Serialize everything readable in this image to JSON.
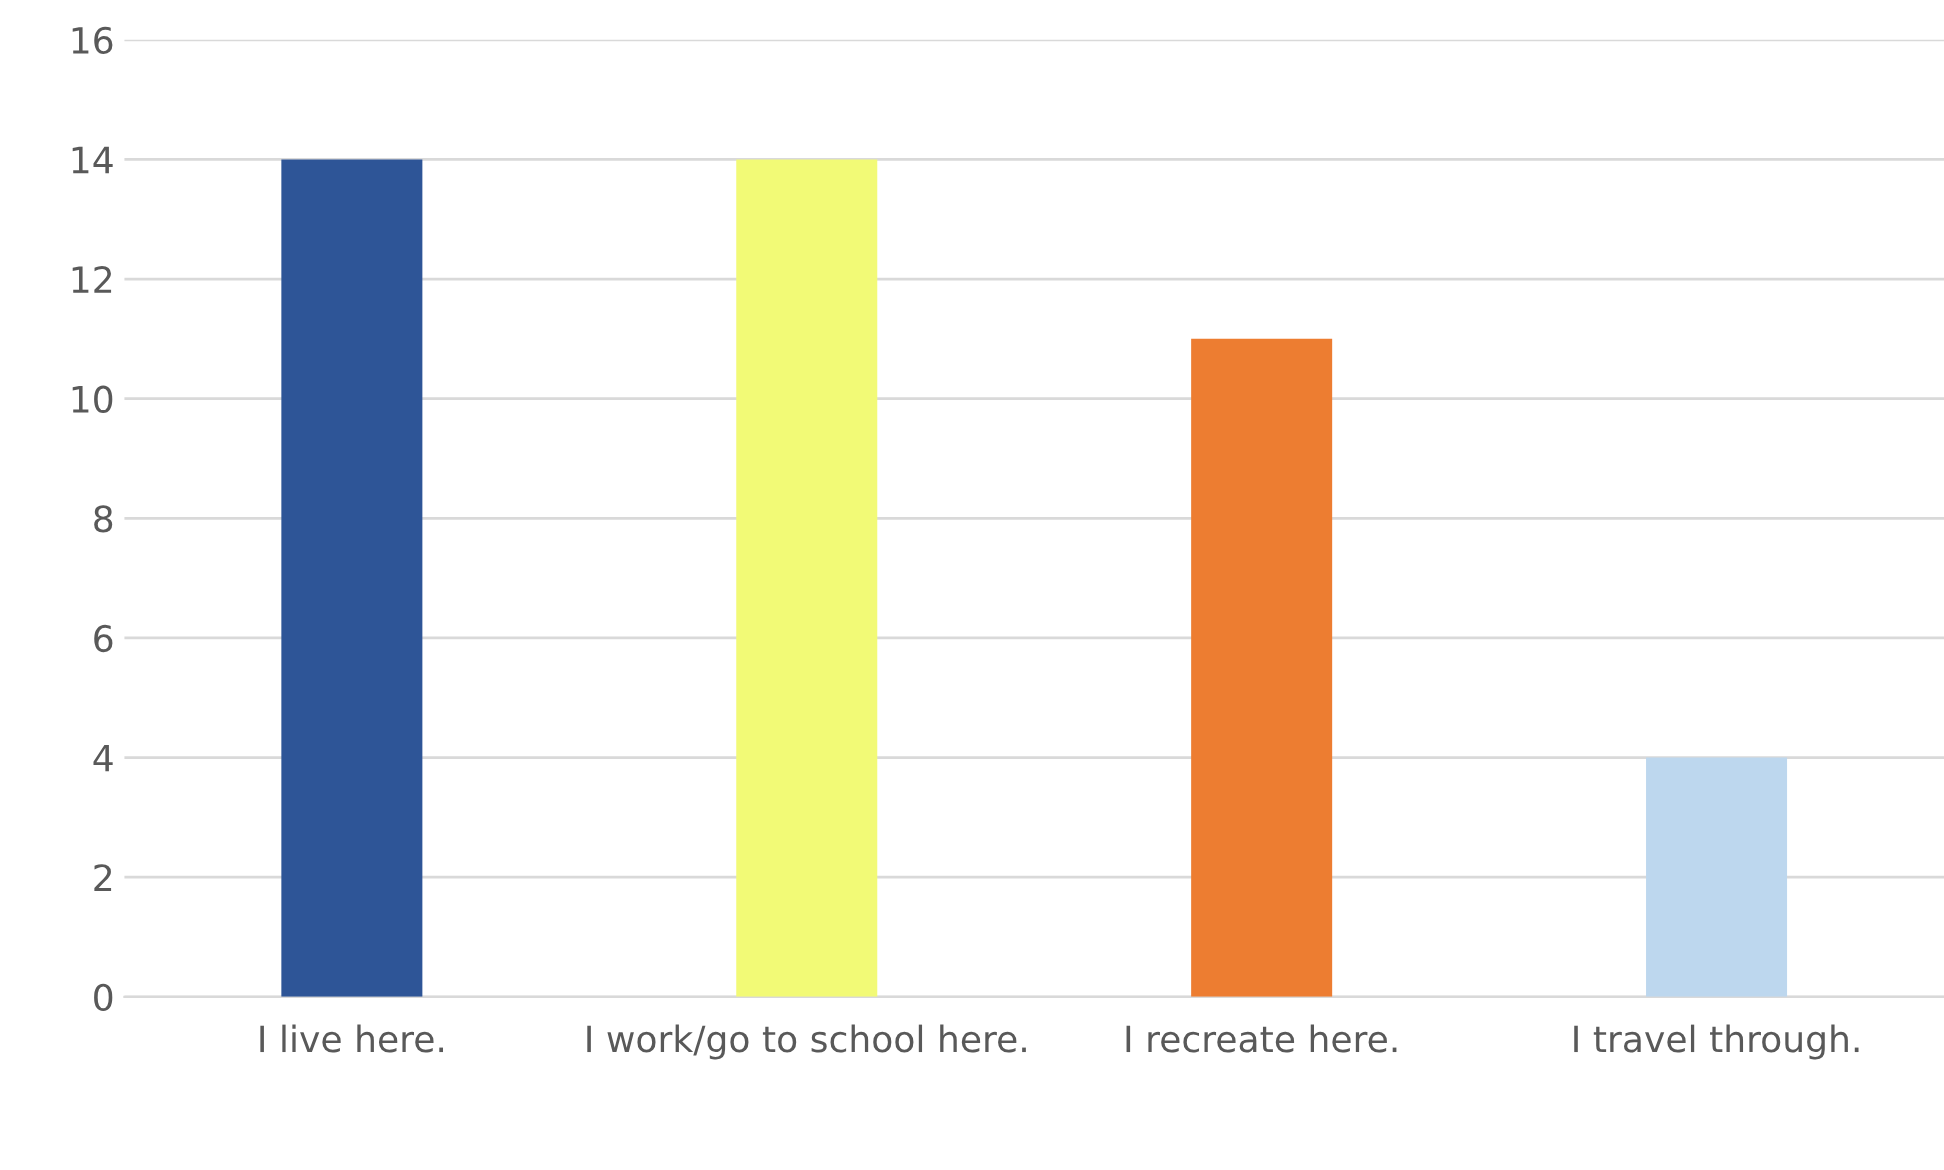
{
  "chart_data": {
    "type": "bar",
    "categories": [
      "I live here.",
      "I work/go to school here.",
      "I recreate here.",
      "I travel through."
    ],
    "values": [
      14,
      14,
      11,
      4
    ],
    "colors": [
      "#2e5597",
      "#f2fa76",
      "#ed7d31",
      "#bdd7ee"
    ],
    "ylim": [
      0,
      16
    ],
    "yticks": [
      0,
      2,
      4,
      6,
      8,
      10,
      12,
      14,
      16
    ],
    "grid": "y",
    "legend": false
  }
}
